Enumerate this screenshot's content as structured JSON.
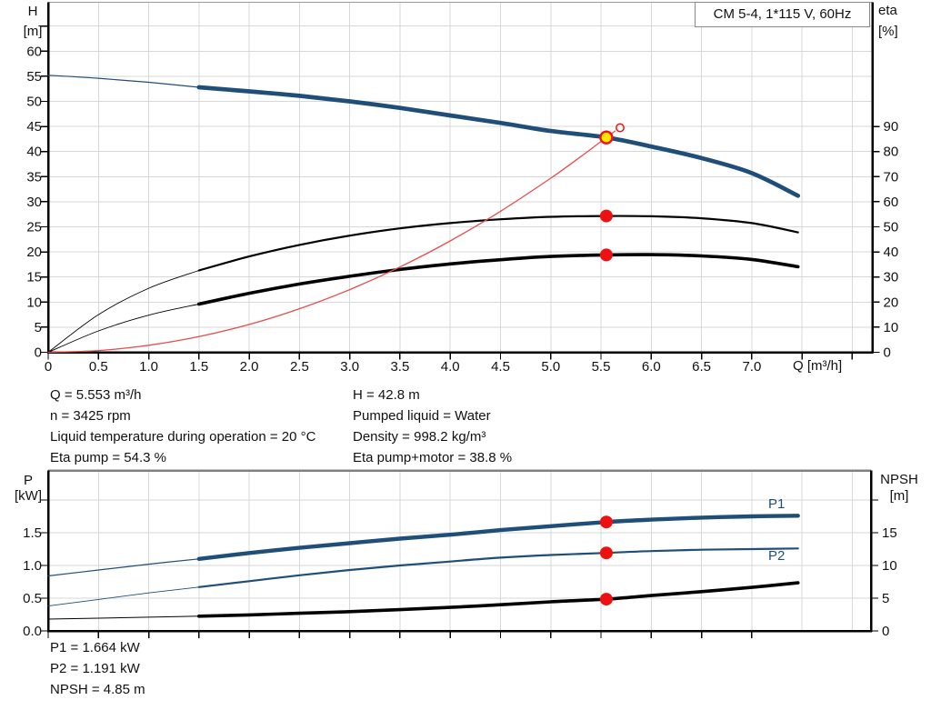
{
  "colors": {
    "curve_blue": "#1f4e79",
    "curve_red": "#e74c4c",
    "marker_red": "#ee1111",
    "duty_yellow": "#ffe600",
    "curve_black": "#000000",
    "grid": "#d7d7d7",
    "axis": "#000000",
    "frame_top": "#9a9a9a",
    "frame_divider": "#808080",
    "text": "#111111"
  },
  "chart_data": [
    {
      "type": "line",
      "title": "CM 5-4, 1*115 V, 60Hz",
      "x": {
        "label": "Q [m³/h]",
        "min": 0,
        "max": 8.2,
        "grid_step": 0.5,
        "tick_labels": [
          "0",
          "0.5",
          "1.0",
          "1.5",
          "2.0",
          "2.5",
          "3.0",
          "3.5",
          "4.0",
          "4.5",
          "5.0",
          "5.5",
          "6.0",
          "6.5",
          "7.0"
        ]
      },
      "y_left": {
        "label": "H",
        "unit": "[m]",
        "min": 0,
        "max": 69.8,
        "tick_labels": [
          "0",
          "5",
          "10",
          "15",
          "20",
          "25",
          "30",
          "35",
          "40",
          "45",
          "50",
          "55",
          "60"
        ]
      },
      "y_right": {
        "label": "eta",
        "unit": "[%]",
        "min": 0,
        "tick_labels": [
          "0",
          "10",
          "20",
          "30",
          "40",
          "50",
          "60",
          "70",
          "80",
          "90"
        ]
      },
      "series": [
        {
          "name": "eta-pump-curve",
          "axis": "right",
          "color": "#000000",
          "thin_until": 1.5,
          "thin_width": 0.9,
          "thick_width": 2.2,
          "x": [
            0,
            0.5,
            1,
            1.5,
            2,
            2.5,
            3,
            3.5,
            4,
            4.5,
            5,
            5.553,
            6,
            6.5,
            7,
            7.46
          ],
          "y": [
            0,
            15,
            25.5,
            32.6,
            38.2,
            42.8,
            46.5,
            49.4,
            51.5,
            53,
            54,
            54.3,
            54.2,
            53.4,
            51.5,
            47.8
          ]
        },
        {
          "name": "eta-pump-plus-motor-curve",
          "axis": "right",
          "color": "#000000",
          "thin_until": 1.5,
          "thin_width": 0.9,
          "thick_width": 3.6,
          "x": [
            0,
            0.5,
            1,
            1.5,
            2,
            2.5,
            3,
            3.5,
            4,
            4.5,
            5,
            5.553,
            6,
            6.5,
            7,
            7.46
          ],
          "y": [
            0,
            8.5,
            14.8,
            19.2,
            23.5,
            27.2,
            30.3,
            33,
            35.2,
            36.9,
            38.2,
            38.8,
            38.9,
            38.4,
            37,
            34.1
          ]
        },
        {
          "name": "pump-curve-QH",
          "axis": "left",
          "color": "#1f4e79",
          "thin_until": 1.5,
          "thin_width": 1.2,
          "thick_width": 4.7,
          "x": [
            0,
            0.5,
            1,
            1.5,
            2,
            2.5,
            3,
            3.5,
            4,
            4.5,
            5,
            5.553,
            6,
            6.5,
            7,
            7.46
          ],
          "y": [
            55.2,
            54.6,
            53.8,
            52.8,
            52,
            51.1,
            50,
            48.7,
            47.2,
            45.7,
            44.1,
            42.8,
            41,
            38.7,
            35.7,
            31.2
          ]
        },
        {
          "name": "system-curve",
          "axis": "left",
          "color": "#e74c4c",
          "width": 1.3,
          "x": [
            0,
            0.5,
            1,
            1.5,
            2,
            2.5,
            3,
            3.5,
            4,
            4.5,
            5,
            5.3,
            5.553,
            5.64
          ],
          "y": [
            0,
            0.35,
            1.39,
            3.12,
            5.55,
            8.67,
            12.49,
            17,
            22.2,
            28.1,
            34.7,
            39,
            42.8,
            44.1
          ]
        }
      ],
      "markers": [
        {
          "kind": "open",
          "x": 5.69,
          "y": 44.75,
          "axis": "left"
        },
        {
          "kind": "duty",
          "x": 5.553,
          "y": 42.8,
          "axis": "left"
        },
        {
          "kind": "dot",
          "x": 5.553,
          "y": 54.3,
          "axis": "right"
        },
        {
          "kind": "dot",
          "x": 5.553,
          "y": 38.8,
          "axis": "right"
        }
      ]
    },
    {
      "type": "line",
      "title": "",
      "x": {
        "label": "",
        "min": 0,
        "max": 8.2,
        "grid_step": 0.5,
        "tick_labels": []
      },
      "y_left": {
        "label": "P",
        "unit": "[kW]",
        "min": 0,
        "max": 2.45,
        "tick_labels": [
          "0.0",
          "0.5",
          "1.0",
          "1.5"
        ]
      },
      "y_right": {
        "label": "NPSH",
        "unit": "[m]",
        "min": 0,
        "tick_labels": [
          "0",
          "5",
          "10",
          "15"
        ]
      },
      "series": [
        {
          "name": "P1-curve",
          "axis": "left",
          "color": "#1f4e79",
          "thin_until": 1.5,
          "thin_width": 1.2,
          "thick_width": 4.4,
          "x": [
            0,
            0.5,
            1,
            1.5,
            2,
            2.5,
            3,
            3.5,
            4,
            4.5,
            5,
            5.553,
            6,
            6.5,
            7,
            7.46
          ],
          "y": [
            0.84,
            0.93,
            1.02,
            1.1,
            1.19,
            1.27,
            1.34,
            1.41,
            1.47,
            1.54,
            1.6,
            1.664,
            1.7,
            1.73,
            1.75,
            1.76
          ]
        },
        {
          "name": "P2-curve",
          "axis": "left",
          "color": "#1f4e79",
          "thin_until": 1.5,
          "thin_width": 0.9,
          "thick_width": 2.2,
          "x": [
            0,
            0.5,
            1,
            1.5,
            2,
            2.5,
            3,
            3.5,
            4,
            4.5,
            5,
            5.553,
            6,
            6.5,
            7,
            7.46
          ],
          "y": [
            0.38,
            0.48,
            0.58,
            0.67,
            0.76,
            0.85,
            0.93,
            1,
            1.06,
            1.12,
            1.16,
            1.191,
            1.22,
            1.24,
            1.25,
            1.26
          ]
        },
        {
          "name": "NPSH-curve",
          "axis": "right",
          "color": "#000000",
          "thin_until": 1.5,
          "thin_width": 1,
          "thick_width": 3.6,
          "x": [
            0,
            0.5,
            1,
            1.5,
            2,
            2.5,
            3,
            3.5,
            4,
            4.5,
            5,
            5.553,
            6,
            6.5,
            7,
            7.46
          ],
          "y": [
            1.8,
            1.95,
            2.1,
            2.25,
            2.45,
            2.7,
            2.95,
            3.25,
            3.6,
            4,
            4.45,
            4.85,
            5.4,
            6,
            6.65,
            7.35
          ]
        }
      ],
      "markers": [
        {
          "kind": "dot",
          "x": 5.553,
          "y": 1.664,
          "axis": "left"
        },
        {
          "kind": "dot",
          "x": 5.553,
          "y": 1.191,
          "axis": "left"
        },
        {
          "kind": "dot",
          "x": 5.553,
          "y": 4.85,
          "axis": "right"
        }
      ],
      "curve_labels": [
        {
          "text": "P1"
        },
        {
          "text": "P2"
        }
      ]
    }
  ],
  "annotations": {
    "duty_info_left": [
      "Q = 5.553 m³/h",
      "n = 3425 rpm",
      "Liquid temperature during operation = 20 °C",
      "Eta pump = 54.3 %"
    ],
    "duty_info_right": [
      "H = 42.8 m",
      "Pumped liquid = Water",
      "Density = 998.2 kg/m³",
      "Eta pump+motor = 38.8 %"
    ],
    "power_info": [
      "P1 = 1.664 kW",
      "P2 = 1.191 kW",
      "NPSH = 4.85 m"
    ]
  }
}
